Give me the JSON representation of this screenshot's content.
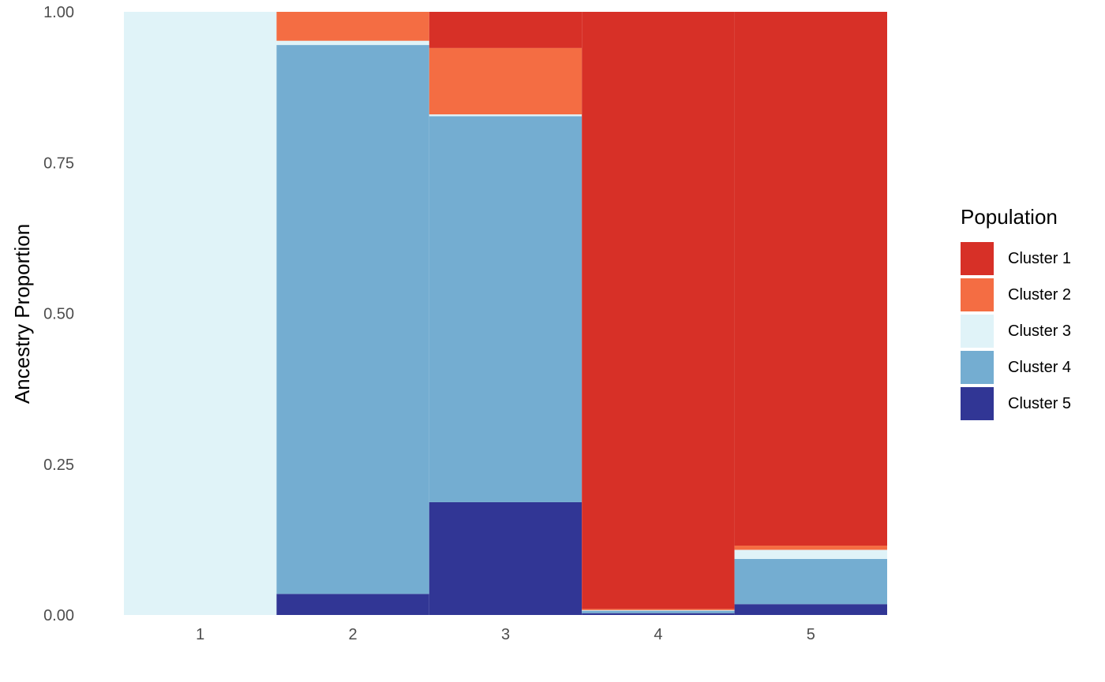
{
  "chart_data": {
    "type": "bar",
    "stacked": true,
    "ylabel": "Ancestry Proportion",
    "xlabel": "",
    "ylim": [
      0,
      1
    ],
    "yticks": [
      "0.00",
      "0.25",
      "0.50",
      "0.75",
      "1.00"
    ],
    "categories": [
      "1",
      "2",
      "3",
      "4",
      "5"
    ],
    "grid": false,
    "legend_position": "right",
    "legend_title": "Population",
    "series": [
      {
        "name": "Cluster 1",
        "color": "#d73027",
        "values": [
          0.0,
          0.0,
          0.06,
          0.99,
          0.885
        ]
      },
      {
        "name": "Cluster 2",
        "color": "#f46d43",
        "values": [
          0.0,
          0.048,
          0.11,
          0.002,
          0.007
        ]
      },
      {
        "name": "Cluster 3",
        "color": "#e0f3f8",
        "values": [
          1.0,
          0.007,
          0.003,
          0.001,
          0.015
        ]
      },
      {
        "name": "Cluster 4",
        "color": "#74add1",
        "values": [
          0.0,
          0.91,
          0.64,
          0.004,
          0.075
        ]
      },
      {
        "name": "Cluster 5",
        "color": "#313695",
        "values": [
          0.0,
          0.035,
          0.187,
          0.003,
          0.018
        ]
      }
    ]
  }
}
